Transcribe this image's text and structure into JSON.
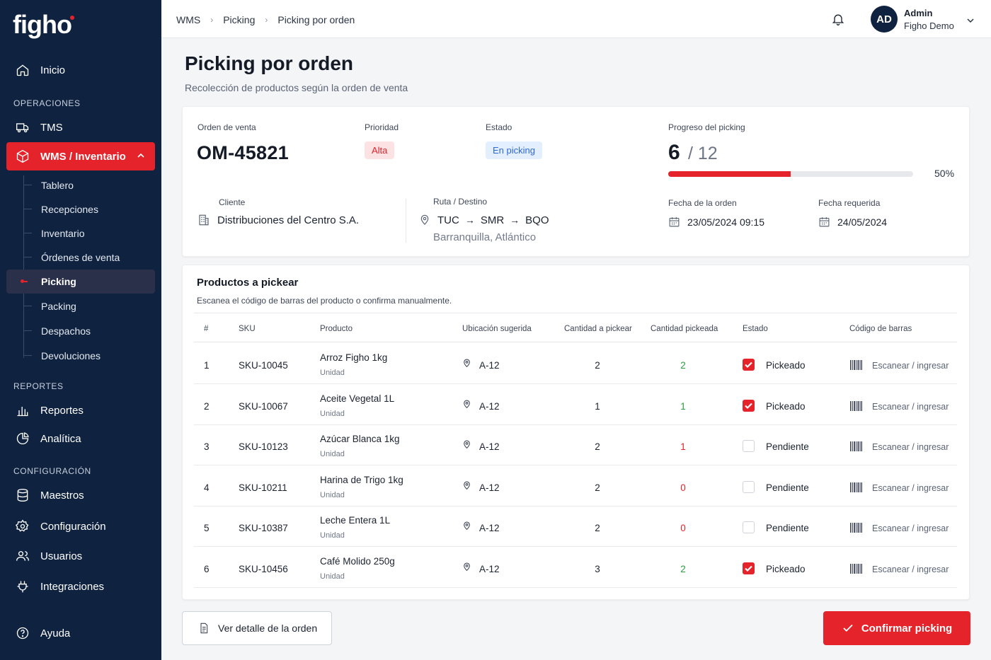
{
  "brand": {
    "logo": "figho",
    "accent": "#e5232b",
    "sidebar_bg": "#0f2240"
  },
  "sidebar": {
    "home": "Inicio",
    "sections": {
      "ops": "OPERACIONES",
      "reports": "REPORTES",
      "config": "CONFIGURACIÓN"
    },
    "tms": "TMS",
    "wms": "WMS / Inventario",
    "sub": [
      "Tablero",
      "Recepciones",
      "Inventario",
      "Órdenes de venta",
      "Picking",
      "Packing",
      "Despachos",
      "Devoluciones"
    ],
    "reportes": "Reportes",
    "analitica": "Analítica",
    "maestros": "Maestros",
    "configuracion": "Configuración",
    "usuarios": "Usuarios",
    "integraciones": "Integraciones",
    "ayuda": "Ayuda"
  },
  "topbar": {
    "breadcrumb": [
      "WMS",
      "Picking",
      "Picking por orden"
    ],
    "avatar_initials": "AD",
    "user_name": "Admin",
    "user_org": "Figho Demo"
  },
  "page": {
    "title": "Picking por orden",
    "subtitle": "Recolección de productos según la orden de venta"
  },
  "order": {
    "label_order": "Orden de venta",
    "number": "OM-45821",
    "label_priority": "Prioridad",
    "priority": "Alta",
    "label_state": "Estado",
    "state": "En picking",
    "label_progress": "Progreso del picking",
    "picked": "6",
    "total": "/ 12",
    "progress_fraction": 0.5,
    "progress_pct": "50%",
    "label_client": "Cliente",
    "client": "Distribuciones del Centro S.A.",
    "label_route": "Ruta / Destino",
    "route": [
      "TUC",
      "SMR",
      "BQO"
    ],
    "destination": "Barranquilla, Atlántico",
    "label_order_date": "Fecha de la orden",
    "order_date": "23/05/2024 09:15",
    "label_required_date": "Fecha requerida",
    "required_date": "24/05/2024"
  },
  "products": {
    "title": "Productos a pickear",
    "subtitle": "Escanea el código de barras del producto o confirma manualmente.",
    "headers": [
      "#",
      "SKU",
      "Producto",
      "Ubicación sugerida",
      "Cantidad a pickear",
      "Cantidad pickeada",
      "Estado",
      "Código de barras"
    ],
    "rows": [
      {
        "n": "1",
        "sku": "SKU-10045",
        "name": "Arroz Figho 1kg",
        "unit": "Unidad",
        "loc": "A-12",
        "qty": "2",
        "picked": "2",
        "picked_color": "#2e9b3e",
        "checked": true,
        "state": "Pickeado",
        "scan": "Escanear / ingresar"
      },
      {
        "n": "2",
        "sku": "SKU-10067",
        "name": "Aceite Vegetal 1L",
        "unit": "Unidad",
        "loc": "A-12",
        "qty": "1",
        "picked": "1",
        "picked_color": "#2e9b3e",
        "checked": true,
        "state": "Pickeado",
        "scan": "Escanear / ingresar"
      },
      {
        "n": "3",
        "sku": "SKU-10123",
        "name": "Azúcar Blanca 1kg",
        "unit": "Unidad",
        "loc": "A-12",
        "qty": "2",
        "picked": "1",
        "picked_color": "#e5232b",
        "checked": false,
        "state": "Pendiente",
        "scan": "Escanear / ingresar"
      },
      {
        "n": "4",
        "sku": "SKU-10211",
        "name": "Harina de Trigo 1kg",
        "unit": "Unidad",
        "loc": "A-12",
        "qty": "2",
        "picked": "0",
        "picked_color": "#e5232b",
        "checked": false,
        "state": "Pendiente",
        "scan": "Escanear / ingresar"
      },
      {
        "n": "5",
        "sku": "SKU-10387",
        "name": "Leche Entera 1L",
        "unit": "Unidad",
        "loc": "A-12",
        "qty": "2",
        "picked": "0",
        "picked_color": "#e5232b",
        "checked": false,
        "state": "Pendiente",
        "scan": "Escanear / ingresar"
      },
      {
        "n": "6",
        "sku": "SKU-10456",
        "name": "Café Molido 250g",
        "unit": "Unidad",
        "loc": "A-12",
        "qty": "3",
        "picked": "2",
        "picked_color": "#2e9b3e",
        "checked": true,
        "state": "Pickeado",
        "scan": "Escanear / ingresar"
      }
    ]
  },
  "actions": {
    "detail": "Ver detalle de la orden",
    "confirm": "Confirmar picking"
  }
}
